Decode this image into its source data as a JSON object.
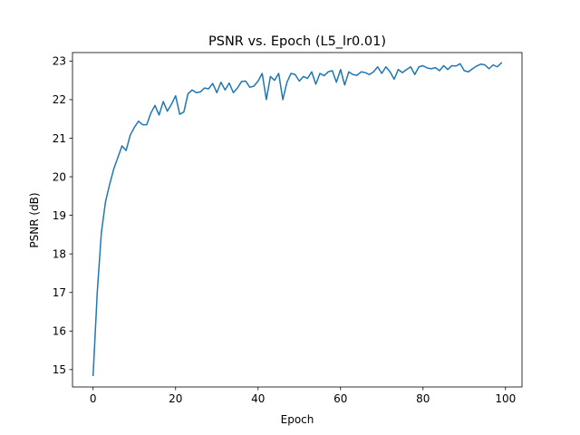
{
  "chart_data": {
    "type": "line",
    "title": "PSNR vs. Epoch (L5_lr0.01)",
    "xlabel": "Epoch",
    "ylabel": "PSNR (dB)",
    "xlim": [
      -5,
      104
    ],
    "ylim": [
      14.55,
      23.22
    ],
    "xticks": [
      0,
      20,
      40,
      60,
      80,
      100
    ],
    "yticks": [
      15,
      16,
      17,
      18,
      19,
      20,
      21,
      22,
      23
    ],
    "grid": false,
    "series": [
      {
        "color": "#1f77b4",
        "x": [
          0,
          1,
          2,
          3,
          4,
          5,
          6,
          7,
          8,
          9,
          10,
          11,
          12,
          13,
          14,
          15,
          16,
          17,
          18,
          19,
          20,
          21,
          22,
          23,
          24,
          25,
          26,
          27,
          28,
          29,
          30,
          31,
          32,
          33,
          34,
          35,
          36,
          37,
          38,
          39,
          40,
          41,
          42,
          43,
          44,
          45,
          46,
          47,
          48,
          49,
          50,
          51,
          52,
          53,
          54,
          55,
          56,
          57,
          58,
          59,
          60,
          61,
          62,
          63,
          64,
          65,
          66,
          67,
          68,
          69,
          70,
          71,
          72,
          73,
          74,
          75,
          76,
          77,
          78,
          79,
          80,
          81,
          82,
          83,
          84,
          85,
          86,
          87,
          88,
          89,
          90,
          91,
          92,
          93,
          94,
          95,
          96,
          97,
          98,
          99
        ],
        "values": [
          14.85,
          17.0,
          18.55,
          19.35,
          19.8,
          20.2,
          20.5,
          20.8,
          20.68,
          21.08,
          21.28,
          21.44,
          21.35,
          21.35,
          21.65,
          21.85,
          21.6,
          21.95,
          21.7,
          21.88,
          22.1,
          21.62,
          21.68,
          22.15,
          22.25,
          22.18,
          22.2,
          22.3,
          22.28,
          22.42,
          22.18,
          22.45,
          22.25,
          22.43,
          22.18,
          22.3,
          22.47,
          22.48,
          22.32,
          22.35,
          22.48,
          22.68,
          22.0,
          22.6,
          22.5,
          22.68,
          22.0,
          22.45,
          22.68,
          22.65,
          22.48,
          22.6,
          22.55,
          22.72,
          22.4,
          22.68,
          22.62,
          22.72,
          22.75,
          22.45,
          22.78,
          22.38,
          22.72,
          22.65,
          22.63,
          22.72,
          22.7,
          22.65,
          22.72,
          22.85,
          22.68,
          22.85,
          22.72,
          22.53,
          22.78,
          22.7,
          22.78,
          22.85,
          22.65,
          22.85,
          22.88,
          22.82,
          22.8,
          22.83,
          22.75,
          22.88,
          22.78,
          22.88,
          22.87,
          22.93,
          22.75,
          22.72,
          22.8,
          22.87,
          22.92,
          22.9,
          22.8,
          22.9,
          22.85,
          22.95
        ]
      }
    ]
  }
}
